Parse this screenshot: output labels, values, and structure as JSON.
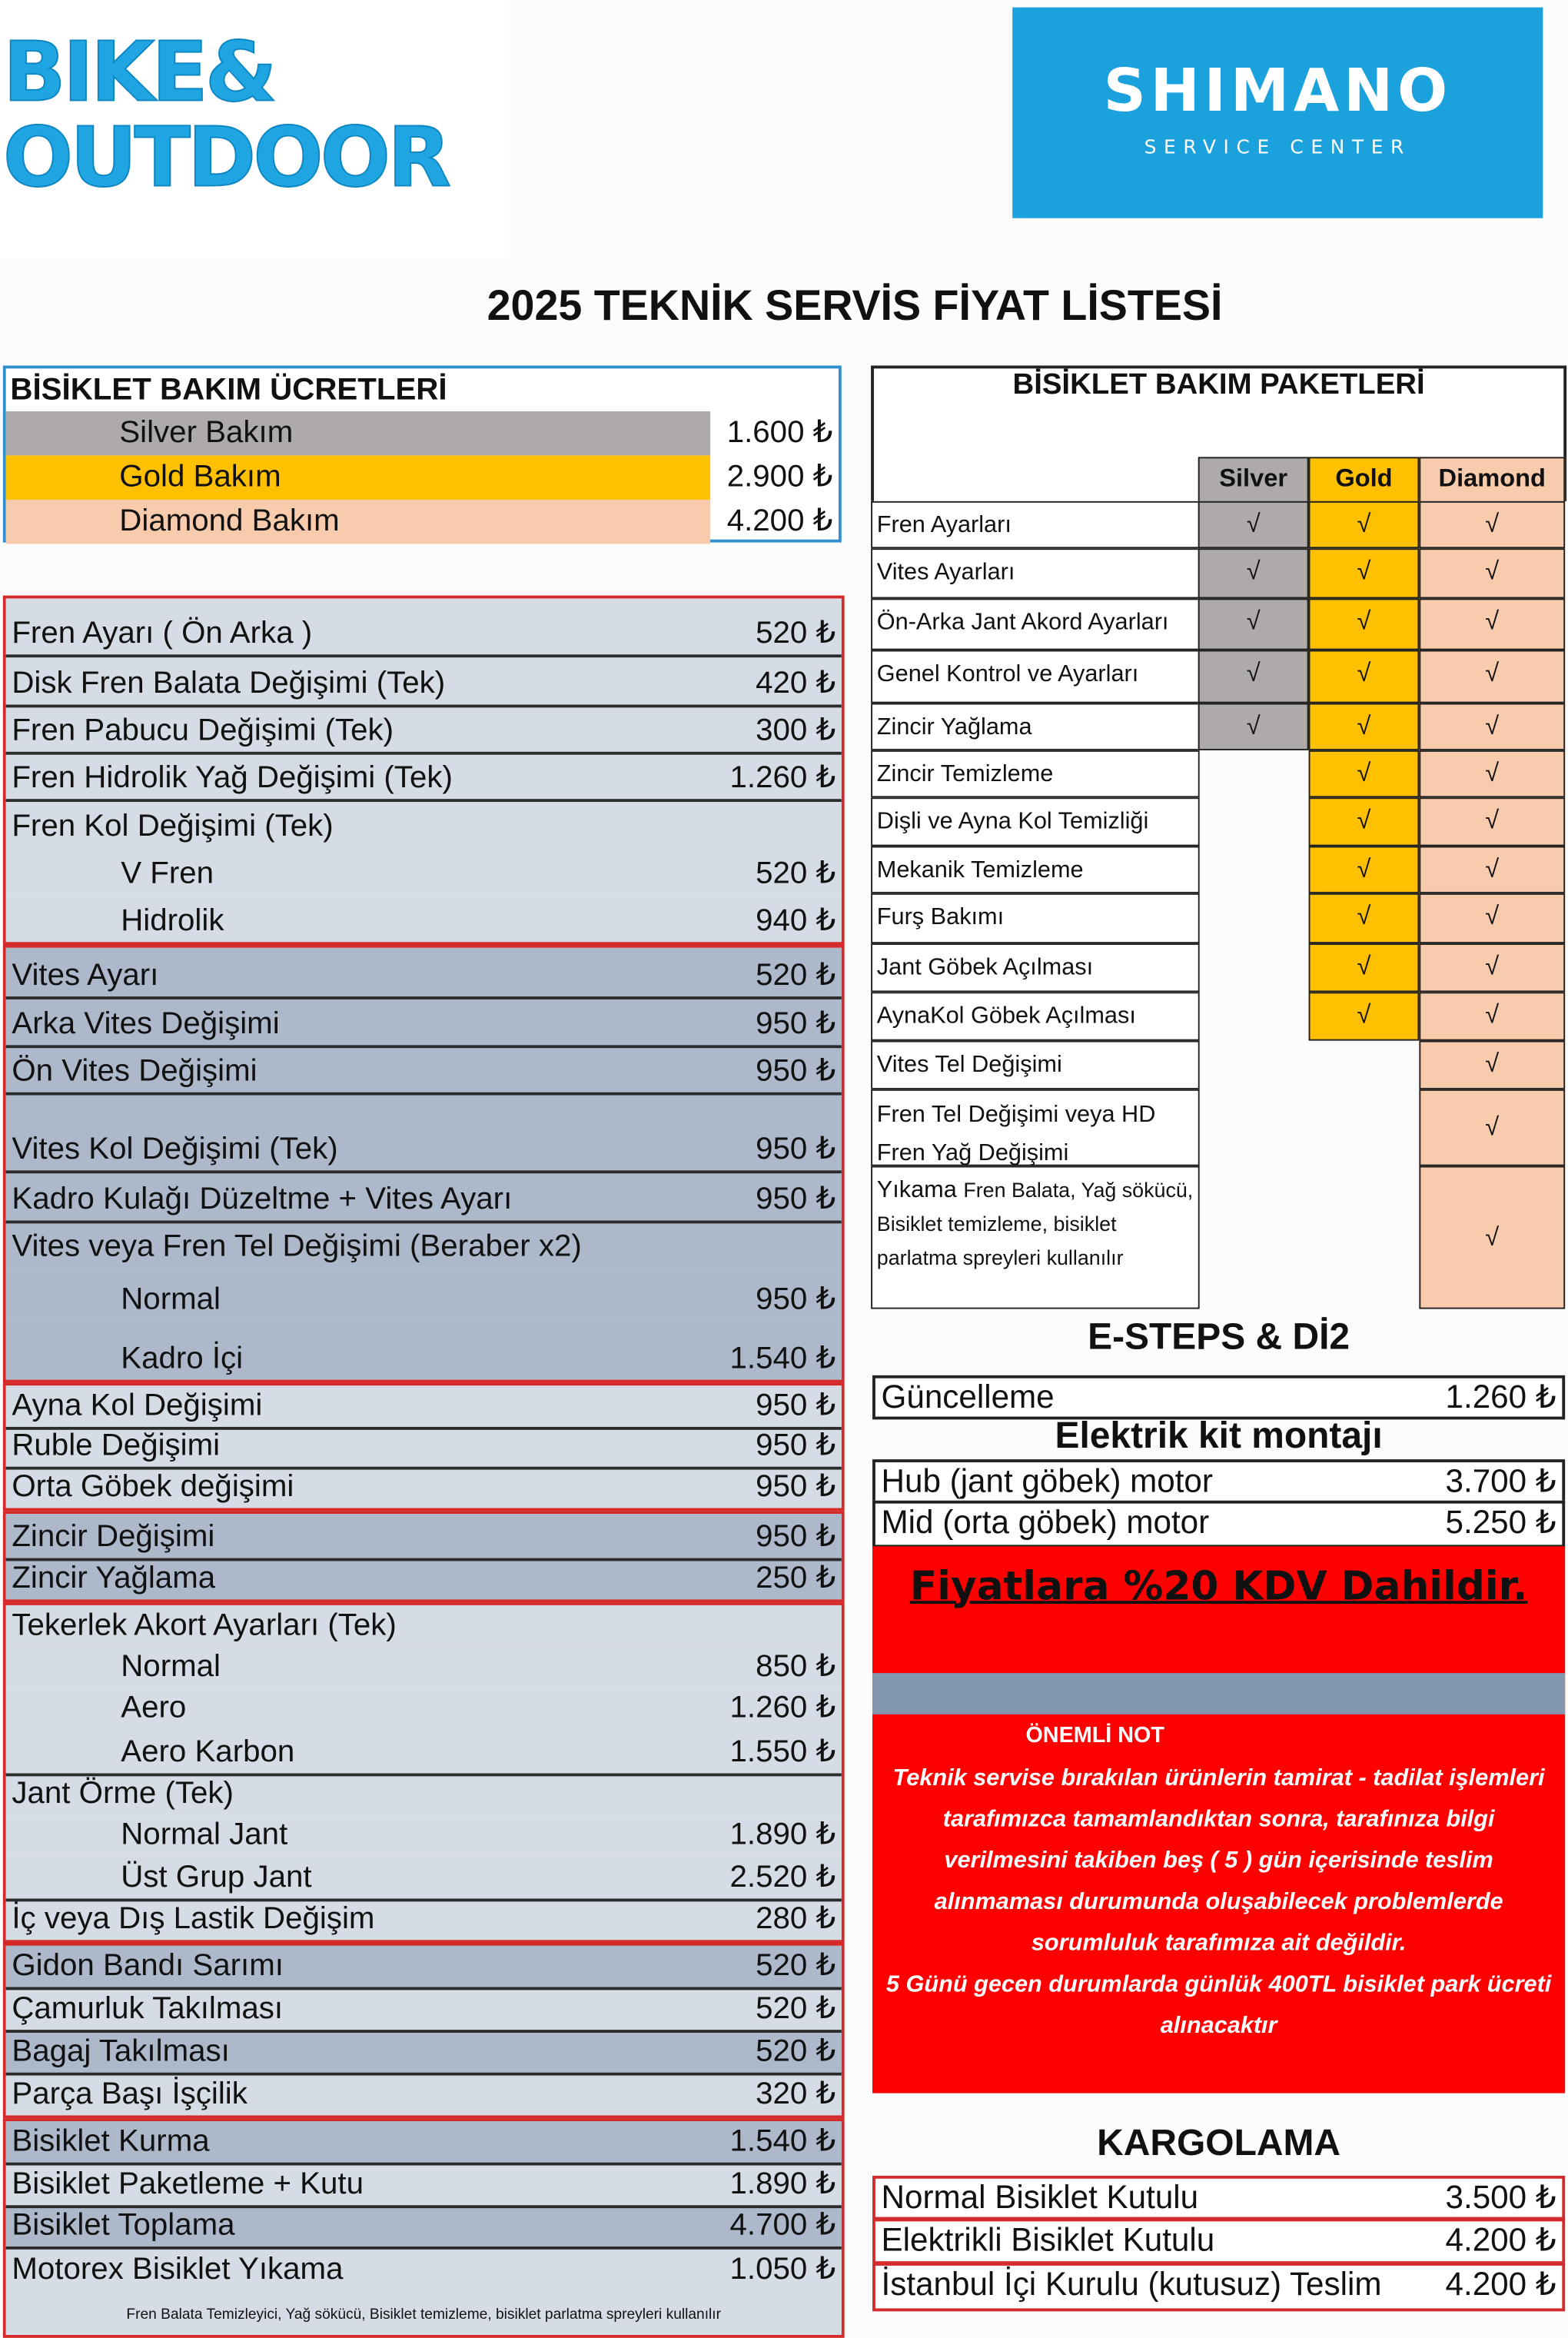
{
  "logos": {
    "left": {
      "line1": "BIKE&",
      "line2": "OUTDOOR",
      "color": "#1fa5e2"
    },
    "right": {
      "brand": "SHIMANO",
      "sub": "SERVICE CENTER",
      "color": "#1ba1dc"
    }
  },
  "title": "2025 TEKNİK SERVİS FİYAT LİSTESİ",
  "bakim_ucretleri": {
    "heading": "BİSİKLET BAKIM ÜCRETLERİ",
    "items": [
      {
        "label": "Silver Bakım",
        "price": "1.600 ₺",
        "color": "#aeaaaa"
      },
      {
        "label": "Gold Bakım",
        "price": "2.900 ₺",
        "color": "#ffc000"
      },
      {
        "label": "Diamond Bakım",
        "price": "4.200 ₺",
        "color": "#f8cbad"
      }
    ]
  },
  "price_list": {
    "groups": [
      {
        "rows": [
          {
            "label": "Fren Ayarı ( Ön Arka )",
            "price": "520 ₺",
            "shade": "light"
          },
          {
            "label": "Disk Fren Balata Değişimi (Tek)",
            "price": "420 ₺",
            "shade": "light"
          },
          {
            "label": "Fren Pabucu Değişimi (Tek)",
            "price": "300 ₺",
            "shade": "light"
          },
          {
            "label": "Fren Hidrolik Yağ Değişimi (Tek)",
            "price": "1.260 ₺",
            "shade": "light"
          },
          {
            "label": "Fren Kol Değişimi (Tek)",
            "price": "",
            "shade": "light"
          },
          {
            "label": "V Fren",
            "price": "520 ₺",
            "shade": "light",
            "sub": true
          },
          {
            "label": "Hidrolik",
            "price": "940 ₺",
            "shade": "light",
            "sub": true
          }
        ]
      },
      {
        "rows": [
          {
            "label": "Vites Ayarı",
            "price": "520 ₺",
            "shade": "dark"
          },
          {
            "label": "Arka Vites Değişimi",
            "price": "950 ₺",
            "shade": "dark"
          },
          {
            "label": "Ön Vites Değişimi",
            "price": "950 ₺",
            "shade": "dark"
          },
          {
            "label": "Vites Kol Değişimi (Tek)",
            "price": "950 ₺",
            "shade": "dark"
          },
          {
            "label": "Kadro Kulağı Düzeltme + Vites Ayarı",
            "price": "950 ₺",
            "shade": "dark"
          },
          {
            "label": "Vites veya Fren Tel Değişimi (Beraber x2)",
            "price": "",
            "shade": "dark"
          },
          {
            "label": "Normal",
            "price": "950 ₺",
            "shade": "dark",
            "sub": true
          },
          {
            "label": "Kadro İçi",
            "price": "1.540 ₺",
            "shade": "dark",
            "sub": true
          }
        ]
      },
      {
        "rows": [
          {
            "label": "Ayna Kol Değişimi",
            "price": "950 ₺",
            "shade": "light"
          },
          {
            "label": "Ruble Değişimi",
            "price": "950 ₺",
            "shade": "light"
          },
          {
            "label": "Orta Göbek değişimi",
            "price": "950 ₺",
            "shade": "light"
          }
        ]
      },
      {
        "rows": [
          {
            "label": "Zincir Değişimi",
            "price": "950 ₺",
            "shade": "dark"
          },
          {
            "label": "Zincir Yağlama",
            "price": "250 ₺",
            "shade": "dark"
          }
        ]
      },
      {
        "rows": [
          {
            "label": "Tekerlek Akort Ayarları (Tek)",
            "price": "",
            "shade": "light"
          },
          {
            "label": "Normal",
            "price": "850 ₺",
            "shade": "light",
            "sub": true
          },
          {
            "label": "Aero",
            "price": "1.260 ₺",
            "shade": "light",
            "sub": true
          },
          {
            "label": "Aero Karbon",
            "price": "1.550 ₺",
            "shade": "light",
            "sub": true
          },
          {
            "label": "Jant Örme (Tek)",
            "price": "",
            "shade": "light"
          },
          {
            "label": "Normal Jant",
            "price": "1.890 ₺",
            "shade": "light",
            "sub": true
          },
          {
            "label": "Üst Grup Jant",
            "price": "2.520 ₺",
            "shade": "light",
            "sub": true
          },
          {
            "label": "İç veya Dış Lastik Değişim",
            "price": "280 ₺",
            "shade": "light"
          }
        ]
      },
      {
        "rows": [
          {
            "label": "Gidon Bandı Sarımı",
            "price": "520 ₺",
            "shade": "dark"
          },
          {
            "label": "Çamurluk Takılması",
            "price": "520 ₺",
            "shade": "light"
          },
          {
            "label": "Bagaj Takılması",
            "price": "520 ₺",
            "shade": "dark"
          },
          {
            "label": "Parça Başı İşçilik",
            "price": "320 ₺",
            "shade": "light"
          }
        ]
      },
      {
        "rows": [
          {
            "label": "Bisiklet Kurma",
            "price": "1.540 ₺",
            "shade": "dark"
          },
          {
            "label": "Bisiklet Paketleme + Kutu",
            "price": "1.890 ₺",
            "shade": "light"
          },
          {
            "label": "Bisiklet Toplama",
            "price": "4.700 ₺",
            "shade": "dark"
          },
          {
            "label": "Motorex Bisiklet Yıkama",
            "price": "1.050 ₺",
            "shade": "light"
          },
          {
            "label": "Fren Balata Temizleyici, Yağ sökücü, Bisiklet temizleme, bisiklet parlatma spreyleri kullanılır",
            "price": "",
            "shade": "light",
            "footnote": true
          }
        ]
      }
    ]
  },
  "packages": {
    "heading": "BİSİKLET BAKIM PAKETLERİ",
    "columns": [
      "Silver",
      "Gold",
      "Diamond"
    ],
    "check_symbol": "√",
    "rows": [
      {
        "label": "Fren Ayarları",
        "silver": true,
        "gold": true,
        "diamond": true
      },
      {
        "label": "Vites Ayarları",
        "silver": true,
        "gold": true,
        "diamond": true
      },
      {
        "label": "Ön-Arka Jant Akord Ayarları",
        "silver": true,
        "gold": true,
        "diamond": true
      },
      {
        "label": "Genel Kontrol ve Ayarları",
        "silver": true,
        "gold": true,
        "diamond": true
      },
      {
        "label": "Zincir Yağlama",
        "silver": true,
        "gold": true,
        "diamond": true
      },
      {
        "label": "Zincir Temizleme",
        "silver": false,
        "gold": true,
        "diamond": true
      },
      {
        "label": "Dişli ve Ayna Kol Temizliği",
        "silver": false,
        "gold": true,
        "diamond": true
      },
      {
        "label": "Mekanik Temizleme",
        "silver": false,
        "gold": true,
        "diamond": true
      },
      {
        "label": "Furş Bakımı",
        "silver": false,
        "gold": true,
        "diamond": true
      },
      {
        "label": "Jant Göbek Açılması",
        "silver": false,
        "gold": true,
        "diamond": true
      },
      {
        "label": "AynaKol Göbek Açılması",
        "silver": false,
        "gold": true,
        "diamond": true
      },
      {
        "label": "Vites Tel Değişimi",
        "silver": false,
        "gold": false,
        "diamond": true
      },
      {
        "label": "Fren Tel Değişimi veya HD Fren Yağ Değişimi",
        "silver": false,
        "gold": false,
        "diamond": true
      },
      {
        "label": "Yıkama",
        "detail": "Fren Balata, Yağ sökücü, Bisiklet temizleme, bisiklet parlatma spreyleri kullanılır",
        "silver": false,
        "gold": false,
        "diamond": true
      }
    ]
  },
  "esteps": {
    "heading": "E-STEPS & Dİ2",
    "rows": [
      {
        "label": "Güncelleme",
        "price": "1.260 ₺"
      }
    ]
  },
  "elektrik_kit": {
    "heading": "Elektrik kit montajı",
    "rows": [
      {
        "label": "Hub (jant göbek) motor",
        "price": "3.700 ₺"
      },
      {
        "label": "Mid (orta göbek) motor",
        "price": "5.250 ₺"
      }
    ]
  },
  "notice": {
    "kdv": "Fiyatlara %20 KDV Dahildir.",
    "important_title": "ÖNEMLİ NOT",
    "important_text": "Teknik servise bırakılan ürünlerin tamirat - tadilat işlemleri tarafımızca tamamlandıktan sonra, tarafınıza bilgi verilmesini takiben beş ( 5 ) gün içerisinde teslim alınmaması durumunda oluşabilecek problemlerde sorumluluk tarafımıza ait değildir.",
    "important_text2": "5 Günü gecen durumlarda günlük 400TL bisiklet park ücreti alınacaktır",
    "color": "#fe0000"
  },
  "kargolama": {
    "heading": "KARGOLAMA",
    "rows": [
      {
        "label": "Normal Bisiklet Kutulu",
        "price": "3.500 ₺"
      },
      {
        "label": "Elektrikli Bisiklet Kutulu",
        "price": "4.200 ₺"
      },
      {
        "label": "İstanbul İçi Kurulu (kutusuz) Teslim",
        "price": "4.200 ₺"
      }
    ]
  }
}
